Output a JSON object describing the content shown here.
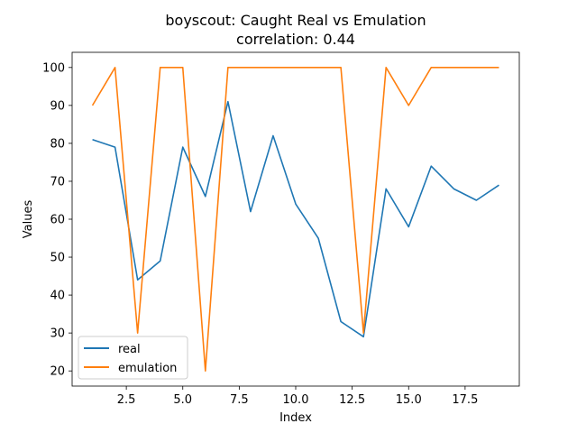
{
  "chart_data": {
    "type": "line",
    "title": "boyscout: Caught Real vs Emulation",
    "subtitle": "correlation: 0.44",
    "xlabel": "Index",
    "ylabel": "Values",
    "xlim": [
      0.1,
      19.9
    ],
    "ylim": [
      16,
      104
    ],
    "xticks": [
      2.5,
      5.0,
      7.5,
      10.0,
      12.5,
      15.0,
      17.5
    ],
    "xtick_labels": [
      "2.5",
      "5.0",
      "7.5",
      "10.0",
      "12.5",
      "15.0",
      "17.5"
    ],
    "yticks": [
      20,
      30,
      40,
      50,
      60,
      70,
      80,
      90,
      100
    ],
    "ytick_labels": [
      "20",
      "30",
      "40",
      "50",
      "60",
      "70",
      "80",
      "90",
      "100"
    ],
    "grid": false,
    "legend_position": "lower-left",
    "x": [
      1,
      2,
      3,
      4,
      5,
      6,
      7,
      8,
      9,
      10,
      11,
      12,
      13,
      14,
      15,
      16,
      17,
      18,
      19
    ],
    "series": [
      {
        "name": "real",
        "color": "#1f77b4",
        "values": [
          81,
          79,
          44,
          49,
          79,
          66,
          91,
          62,
          82,
          64,
          55,
          33,
          29,
          68,
          58,
          74,
          68,
          65,
          69
        ]
      },
      {
        "name": "emulation",
        "color": "#ff7f0e",
        "values": [
          90,
          100,
          30,
          100,
          100,
          20,
          100,
          100,
          100,
          100,
          100,
          100,
          30,
          100,
          90,
          100,
          100,
          100,
          100
        ]
      }
    ]
  }
}
